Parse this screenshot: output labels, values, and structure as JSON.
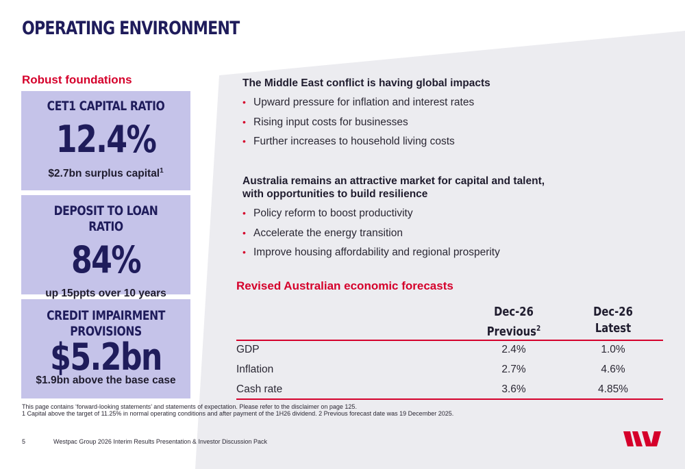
{
  "title": "OPERATING ENVIRONMENT",
  "foundations": {
    "heading": "Robust foundations",
    "cards": [
      {
        "heading": "CET1 CAPITAL RATIO",
        "value": "12.4%",
        "sub": "$2.7bn surplus capital",
        "sup": "1"
      },
      {
        "heading": "DEPOSIT TO LOAN RATIO",
        "value": "84%",
        "sub": "up 15ppts over 10 years"
      },
      {
        "heading_line1": "CREDIT IMPAIRMENT",
        "heading_line2": "PROVISIONS",
        "value": "$5.2bn",
        "sub": "$1.9bn above the base case"
      }
    ]
  },
  "middle_east": {
    "headline": "The Middle East conflict is having global impacts",
    "bullets": [
      "Upward pressure for inflation and interest rates",
      "Rising input costs for businesses",
      "Further increases to household living costs"
    ]
  },
  "australia": {
    "headline_line1": "Australia remains an attractive market for capital and talent,",
    "headline_line2": "with opportunities to build resilience",
    "bullets": [
      "Policy reform to boost productivity",
      "Accelerate the energy transition",
      "Improve housing affordability and regional prosperity"
    ]
  },
  "forecasts": {
    "heading": "Revised Australian economic forecasts",
    "col1_line1": "Dec-26",
    "col1_line2": "Previous",
    "col1_sup": "2",
    "col2_line1": "Dec-26",
    "col2_line2": "Latest",
    "rows": [
      {
        "label": "GDP",
        "previous": "2.4%",
        "latest": "1.0%"
      },
      {
        "label": "Inflation",
        "previous": "2.7%",
        "latest": "4.6%"
      },
      {
        "label": "Cash rate",
        "previous": "3.6%",
        "latest": "4.85%"
      }
    ]
  },
  "footnotes": {
    "line1": "This page contains ‘forward-looking statements’ and statements of expectation. Please refer to the disclaimer on page 125.",
    "line2": "1 Capital above the target of 11.25% in normal operating conditions and after payment of the 1H26 dividend. 2 Previous forecast date was 19 December 2025."
  },
  "footer": {
    "page_number": "5",
    "text": "Westpac Group 2026 Interim Results Presentation & Investor Discussion Pack"
  },
  "colors": {
    "brand_red": "#d5002b",
    "navy": "#1f1c5b",
    "card_lavender": "#c5c3e9",
    "wedge_grey": "#ececf0"
  },
  "icons": {
    "logo": "westpac-w-logo"
  }
}
